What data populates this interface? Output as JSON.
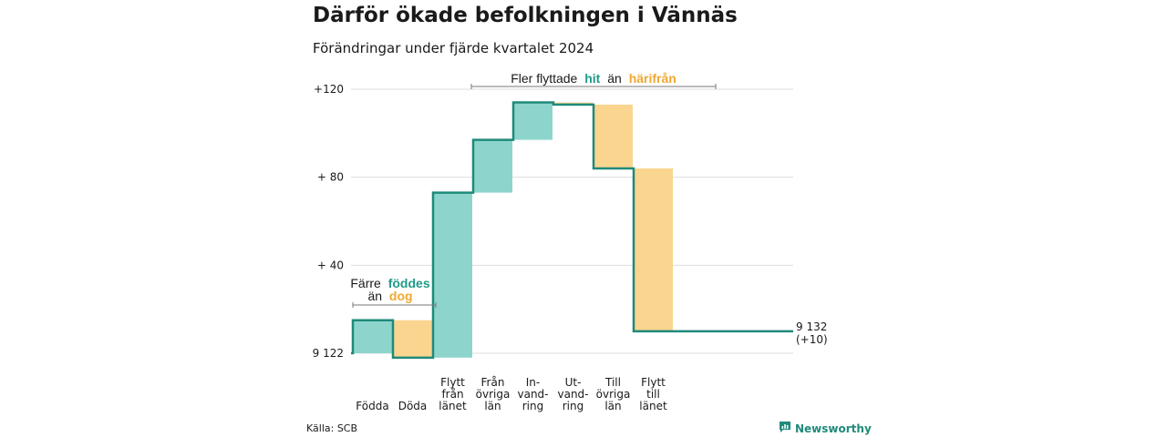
{
  "title": "Därför ökade befolkningen i Vännäs",
  "subtitle": "Förändringar under fjärde kvartalet 2024",
  "source": "Källa: SCB",
  "brand": "Newsworthy",
  "colors": {
    "increase": "#8dd5cc",
    "decrease": "#f9d58f",
    "line": "#1f8a7a",
    "grid": "#dddddd",
    "teal_text": "#1f9a8a",
    "orange_text": "#f0a830"
  },
  "annotations": {
    "births": {
      "line1": "Färre",
      "word_teal": "föddes",
      "line2": "än",
      "word_orange": "dog"
    },
    "moves": {
      "prefix": "Fler flyttade",
      "word_teal": "hit",
      "middle": "än",
      "word_orange": "härifrån"
    }
  },
  "chart_data": {
    "type": "waterfall",
    "title": "Därför ökade befolkningen i Vännäs",
    "subtitle": "Förändringar under fjärde kvartalet 2024",
    "baseline_label": "9 122",
    "start_value": 9122,
    "end_label": [
      "9 132",
      "(+10)"
    ],
    "end_value": 9132,
    "y_tick_labels": [
      "+120",
      "+ 80",
      "+ 40",
      "9 122"
    ],
    "y_ticks_relative": [
      120,
      80,
      40,
      0
    ],
    "ylim_relative": [
      0,
      120
    ],
    "grid": true,
    "categories": [
      {
        "label": [
          "Födda"
        ],
        "change": 15,
        "direction": "in"
      },
      {
        "label": [
          "Döda"
        ],
        "change": -17,
        "direction": "out"
      },
      {
        "label": [
          "Flytt",
          "från",
          "länet"
        ],
        "change": 75,
        "direction": "in"
      },
      {
        "label": [
          "Från",
          "övriga",
          "län"
        ],
        "change": 24,
        "direction": "in"
      },
      {
        "label": [
          "In-",
          "vand-",
          "ring"
        ],
        "change": 17,
        "direction": "in"
      },
      {
        "label": [
          "Ut-",
          "vand-",
          "ring"
        ],
        "change": -1,
        "direction": "out"
      },
      {
        "label": [
          "Till",
          "övriga",
          "län"
        ],
        "change": -29,
        "direction": "out"
      },
      {
        "label": [
          "Flytt",
          "till",
          "länet"
        ],
        "change": -74,
        "direction": "out"
      }
    ]
  }
}
